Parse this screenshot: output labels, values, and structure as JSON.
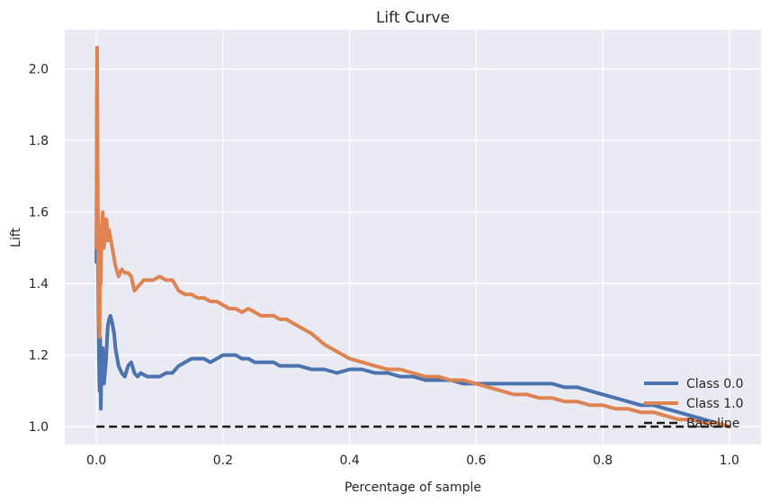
{
  "chart_data": {
    "type": "line",
    "title": "Lift Curve",
    "xlabel": "Percentage of sample",
    "ylabel": "Lift",
    "xlim": [
      -0.05,
      1.05
    ],
    "ylim": [
      0.95,
      2.11
    ],
    "xticks": [
      0.0,
      0.2,
      0.4,
      0.6,
      0.8,
      1.0
    ],
    "xtick_labels": [
      "0.0",
      "0.2",
      "0.4",
      "0.6",
      "0.8",
      "1.0"
    ],
    "yticks": [
      1.0,
      1.2,
      1.4,
      1.6,
      1.8,
      2.0
    ],
    "ytick_labels": [
      "1.0",
      "1.2",
      "1.4",
      "1.6",
      "1.8",
      "2.0"
    ],
    "grid": true,
    "legend_position": "lower-right",
    "series": [
      {
        "name": "Class 0.0",
        "color": "#4c72b0",
        "x": [
          0.0,
          0.001,
          0.002,
          0.003,
          0.004,
          0.005,
          0.006,
          0.007,
          0.008,
          0.01,
          0.012,
          0.015,
          0.018,
          0.02,
          0.022,
          0.025,
          0.028,
          0.03,
          0.035,
          0.04,
          0.045,
          0.05,
          0.055,
          0.06,
          0.065,
          0.07,
          0.08,
          0.09,
          0.1,
          0.11,
          0.12,
          0.13,
          0.14,
          0.15,
          0.16,
          0.17,
          0.18,
          0.19,
          0.2,
          0.21,
          0.22,
          0.23,
          0.24,
          0.25,
          0.26,
          0.27,
          0.28,
          0.29,
          0.3,
          0.32,
          0.34,
          0.36,
          0.38,
          0.4,
          0.42,
          0.44,
          0.46,
          0.48,
          0.5,
          0.52,
          0.54,
          0.56,
          0.58,
          0.6,
          0.62,
          0.64,
          0.66,
          0.68,
          0.7,
          0.72,
          0.74,
          0.76,
          0.78,
          0.8,
          0.82,
          0.84,
          0.86,
          0.88,
          0.9,
          0.92,
          0.94,
          0.96,
          0.98,
          1.0
        ],
        "y": [
          1.46,
          1.94,
          1.55,
          1.35,
          1.18,
          1.1,
          1.25,
          1.05,
          1.2,
          1.22,
          1.12,
          1.18,
          1.28,
          1.3,
          1.31,
          1.29,
          1.26,
          1.22,
          1.17,
          1.15,
          1.14,
          1.17,
          1.18,
          1.15,
          1.14,
          1.15,
          1.14,
          1.14,
          1.14,
          1.15,
          1.15,
          1.17,
          1.18,
          1.19,
          1.19,
          1.19,
          1.18,
          1.19,
          1.2,
          1.2,
          1.2,
          1.19,
          1.19,
          1.18,
          1.18,
          1.18,
          1.18,
          1.17,
          1.17,
          1.17,
          1.16,
          1.16,
          1.15,
          1.16,
          1.16,
          1.15,
          1.15,
          1.14,
          1.14,
          1.13,
          1.13,
          1.13,
          1.12,
          1.12,
          1.12,
          1.12,
          1.12,
          1.12,
          1.12,
          1.12,
          1.11,
          1.11,
          1.1,
          1.09,
          1.08,
          1.07,
          1.06,
          1.06,
          1.05,
          1.04,
          1.03,
          1.02,
          1.01,
          1.0
        ]
      },
      {
        "name": "Class 1.0",
        "color": "#dd8452",
        "x": [
          0.0,
          0.001,
          0.002,
          0.003,
          0.004,
          0.005,
          0.006,
          0.007,
          0.008,
          0.01,
          0.012,
          0.014,
          0.016,
          0.018,
          0.02,
          0.022,
          0.025,
          0.03,
          0.035,
          0.04,
          0.045,
          0.05,
          0.055,
          0.06,
          0.065,
          0.07,
          0.075,
          0.08,
          0.09,
          0.1,
          0.11,
          0.12,
          0.13,
          0.14,
          0.15,
          0.16,
          0.17,
          0.18,
          0.19,
          0.2,
          0.21,
          0.22,
          0.23,
          0.24,
          0.25,
          0.26,
          0.27,
          0.28,
          0.29,
          0.3,
          0.32,
          0.34,
          0.36,
          0.38,
          0.4,
          0.42,
          0.44,
          0.46,
          0.48,
          0.5,
          0.52,
          0.54,
          0.56,
          0.58,
          0.6,
          0.62,
          0.64,
          0.66,
          0.68,
          0.7,
          0.72,
          0.74,
          0.76,
          0.78,
          0.8,
          0.82,
          0.84,
          0.86,
          0.88,
          0.9,
          0.92,
          0.94,
          0.96,
          0.98,
          1.0
        ],
        "y": [
          1.5,
          2.06,
          1.7,
          1.45,
          1.3,
          1.25,
          1.5,
          1.4,
          1.55,
          1.6,
          1.5,
          1.55,
          1.58,
          1.52,
          1.55,
          1.53,
          1.5,
          1.45,
          1.42,
          1.44,
          1.43,
          1.43,
          1.42,
          1.38,
          1.39,
          1.4,
          1.41,
          1.41,
          1.41,
          1.42,
          1.41,
          1.41,
          1.38,
          1.37,
          1.37,
          1.36,
          1.36,
          1.35,
          1.35,
          1.34,
          1.33,
          1.33,
          1.32,
          1.33,
          1.32,
          1.31,
          1.31,
          1.31,
          1.3,
          1.3,
          1.28,
          1.26,
          1.23,
          1.21,
          1.19,
          1.18,
          1.17,
          1.16,
          1.16,
          1.15,
          1.14,
          1.14,
          1.13,
          1.13,
          1.12,
          1.11,
          1.1,
          1.09,
          1.09,
          1.08,
          1.08,
          1.07,
          1.07,
          1.06,
          1.06,
          1.05,
          1.05,
          1.04,
          1.04,
          1.03,
          1.02,
          1.02,
          1.01,
          1.01,
          1.0
        ]
      },
      {
        "name": "Baseline",
        "color": "#1a1a1a",
        "dashed": true,
        "x": [
          0.0,
          1.0
        ],
        "y": [
          1.0,
          1.0
        ]
      }
    ]
  }
}
